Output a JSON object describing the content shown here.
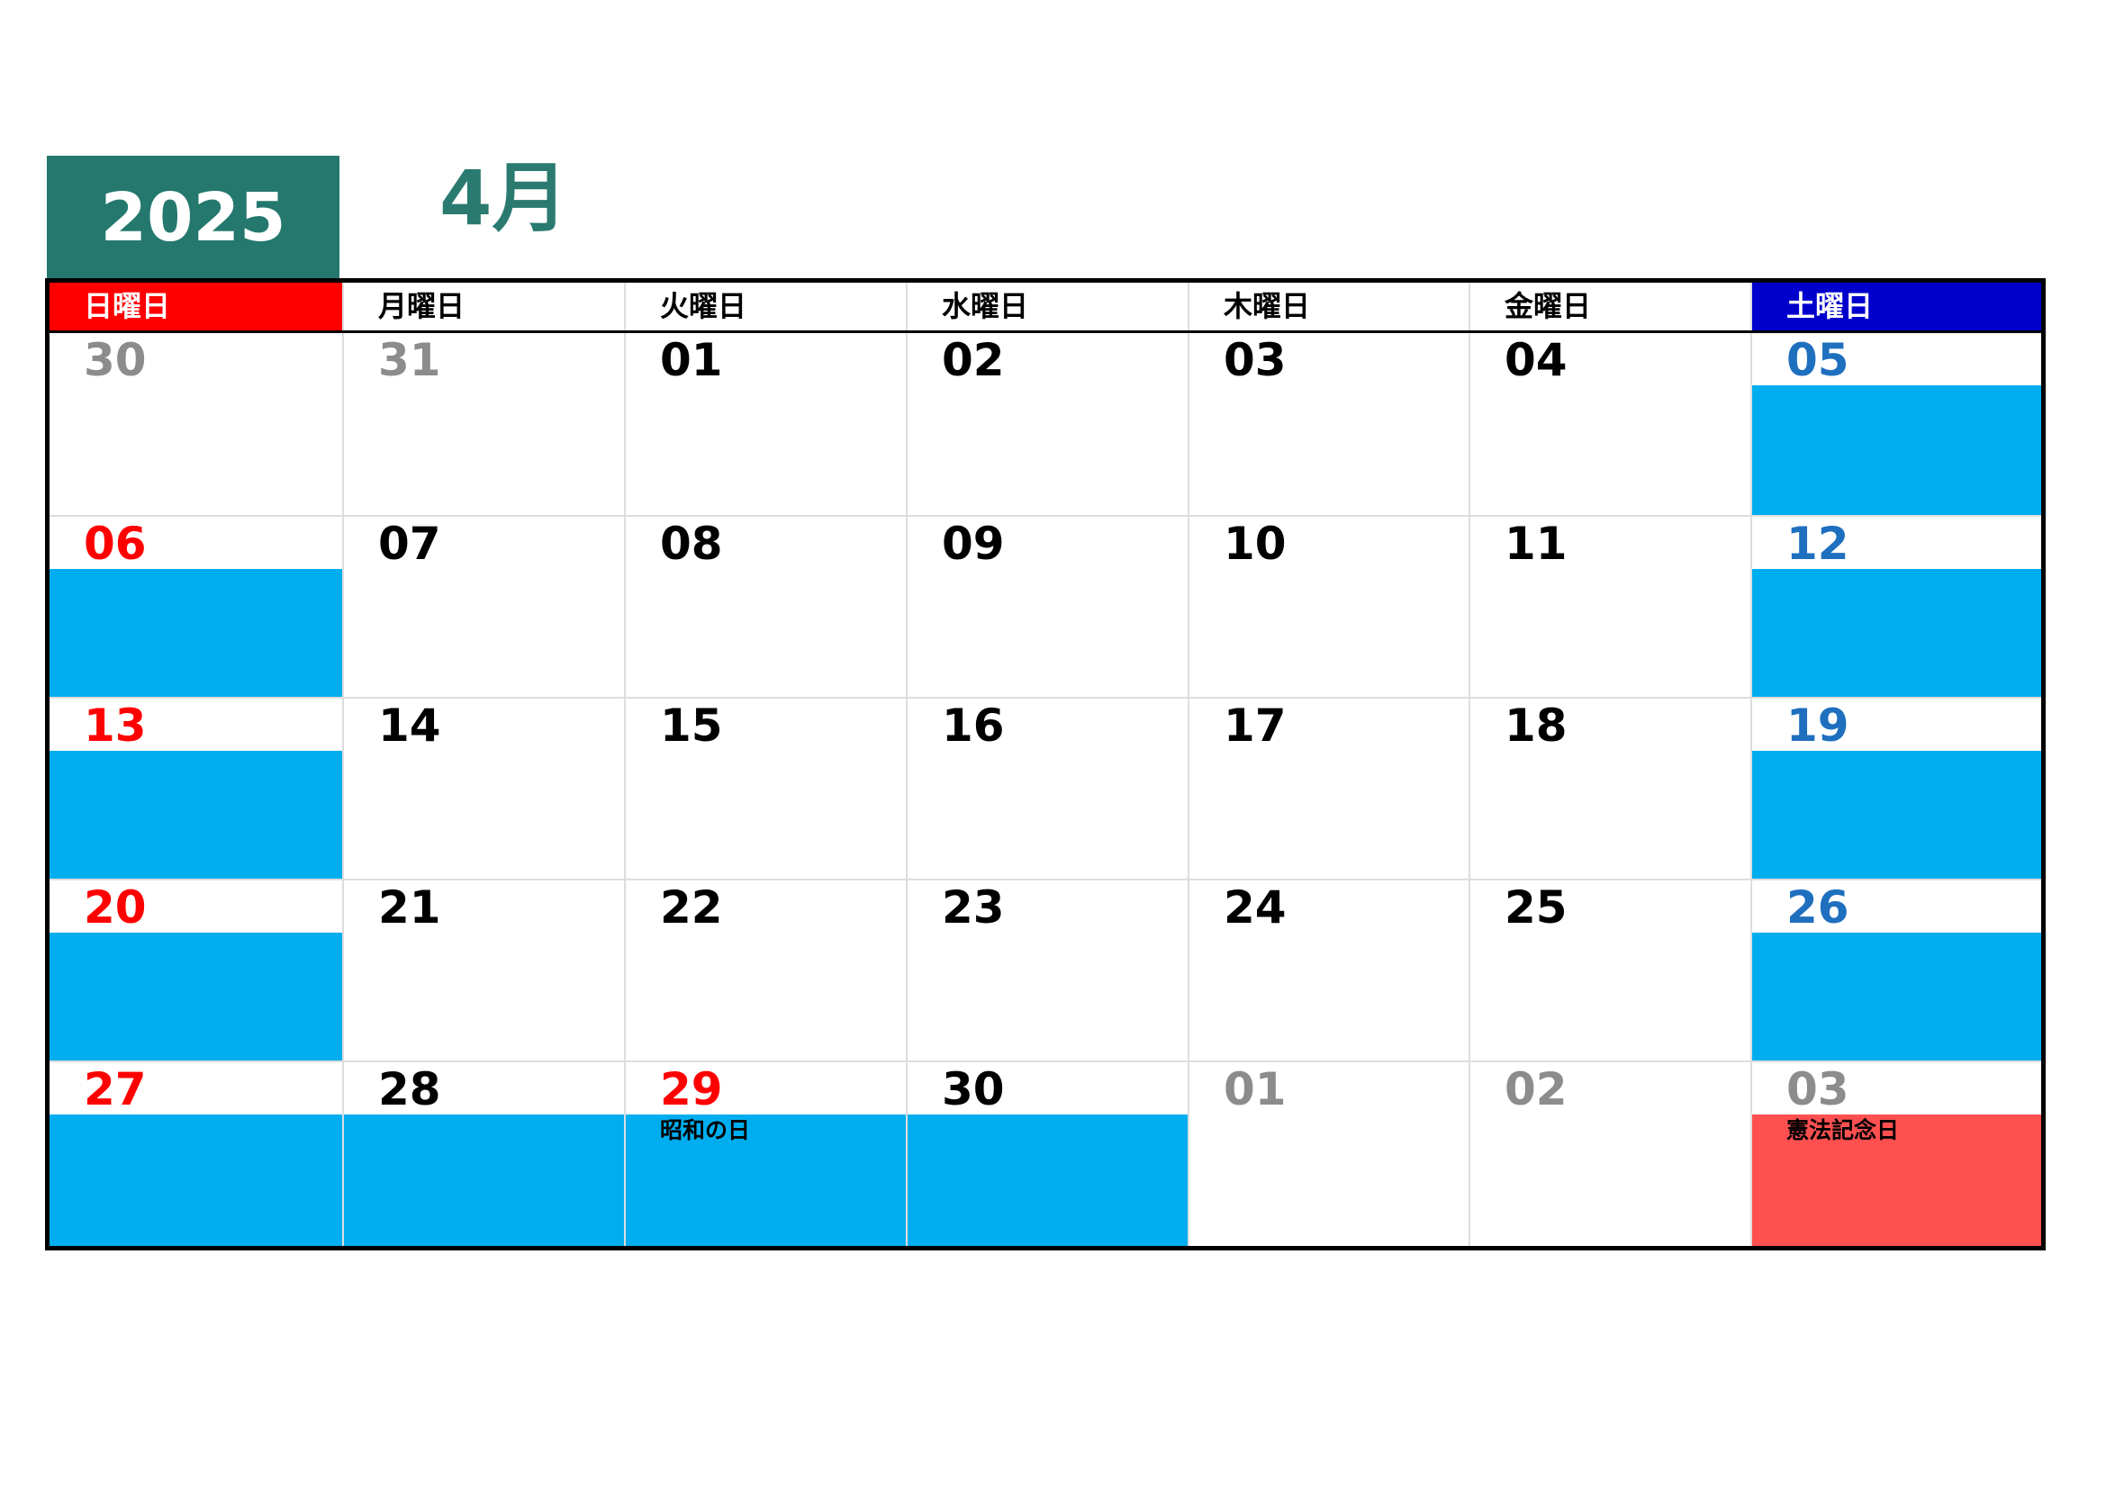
{
  "year": "2025",
  "month": "4月",
  "colors": {
    "accent": "#24786e",
    "sunday_header": "#ff0000",
    "saturday_header": "#0000cc",
    "band_blue": "#00aeef",
    "band_red": "#ff5050",
    "sunday_text": "#ff0000",
    "saturday_text": "#1f6fbf",
    "other_month_text": "#8c8c8c",
    "weekday_text": "#000000"
  },
  "weekdays": [
    {
      "label": "日曜日",
      "bg": "#ff0000",
      "color": "#ffffff"
    },
    {
      "label": "月曜日",
      "bg": "#ffffff",
      "color": "#000000"
    },
    {
      "label": "火曜日",
      "bg": "#ffffff",
      "color": "#000000"
    },
    {
      "label": "水曜日",
      "bg": "#ffffff",
      "color": "#000000"
    },
    {
      "label": "木曜日",
      "bg": "#ffffff",
      "color": "#000000"
    },
    {
      "label": "金曜日",
      "bg": "#ffffff",
      "color": "#000000"
    },
    {
      "label": "土曜日",
      "bg": "#0000cc",
      "color": "#ffffff"
    }
  ],
  "weeks": [
    [
      {
        "day": "30",
        "style": "other",
        "band": null,
        "holiday": ""
      },
      {
        "day": "31",
        "style": "other",
        "band": null,
        "holiday": ""
      },
      {
        "day": "01",
        "style": "weekday",
        "band": null,
        "holiday": ""
      },
      {
        "day": "02",
        "style": "weekday",
        "band": null,
        "holiday": ""
      },
      {
        "day": "03",
        "style": "weekday",
        "band": null,
        "holiday": ""
      },
      {
        "day": "04",
        "style": "weekday",
        "band": null,
        "holiday": ""
      },
      {
        "day": "05",
        "style": "saturday",
        "band": "blue",
        "holiday": ""
      }
    ],
    [
      {
        "day": "06",
        "style": "sunday",
        "band": "blue",
        "holiday": ""
      },
      {
        "day": "07",
        "style": "weekday",
        "band": null,
        "holiday": ""
      },
      {
        "day": "08",
        "style": "weekday",
        "band": null,
        "holiday": ""
      },
      {
        "day": "09",
        "style": "weekday",
        "band": null,
        "holiday": ""
      },
      {
        "day": "10",
        "style": "weekday",
        "band": null,
        "holiday": ""
      },
      {
        "day": "11",
        "style": "weekday",
        "band": null,
        "holiday": ""
      },
      {
        "day": "12",
        "style": "saturday",
        "band": "blue",
        "holiday": ""
      }
    ],
    [
      {
        "day": "13",
        "style": "sunday",
        "band": "blue",
        "holiday": ""
      },
      {
        "day": "14",
        "style": "weekday",
        "band": null,
        "holiday": ""
      },
      {
        "day": "15",
        "style": "weekday",
        "band": null,
        "holiday": ""
      },
      {
        "day": "16",
        "style": "weekday",
        "band": null,
        "holiday": ""
      },
      {
        "day": "17",
        "style": "weekday",
        "band": null,
        "holiday": ""
      },
      {
        "day": "18",
        "style": "weekday",
        "band": null,
        "holiday": ""
      },
      {
        "day": "19",
        "style": "saturday",
        "band": "blue",
        "holiday": ""
      }
    ],
    [
      {
        "day": "20",
        "style": "sunday",
        "band": "blue",
        "holiday": ""
      },
      {
        "day": "21",
        "style": "weekday",
        "band": null,
        "holiday": ""
      },
      {
        "day": "22",
        "style": "weekday",
        "band": null,
        "holiday": ""
      },
      {
        "day": "23",
        "style": "weekday",
        "band": null,
        "holiday": ""
      },
      {
        "day": "24",
        "style": "weekday",
        "band": null,
        "holiday": ""
      },
      {
        "day": "25",
        "style": "weekday",
        "band": null,
        "holiday": ""
      },
      {
        "day": "26",
        "style": "saturday",
        "band": "blue",
        "holiday": ""
      }
    ],
    [
      {
        "day": "27",
        "style": "sunday",
        "band": "blue",
        "holiday": ""
      },
      {
        "day": "28",
        "style": "weekday",
        "band": "blue",
        "holiday": ""
      },
      {
        "day": "29",
        "style": "sunday",
        "band": "blue",
        "holiday": "昭和の日"
      },
      {
        "day": "30",
        "style": "weekday",
        "band": "blue",
        "holiday": ""
      },
      {
        "day": "01",
        "style": "other",
        "band": null,
        "holiday": ""
      },
      {
        "day": "02",
        "style": "other",
        "band": null,
        "holiday": ""
      },
      {
        "day": "03",
        "style": "other",
        "band": "red",
        "holiday": "憲法記念日"
      }
    ]
  ]
}
